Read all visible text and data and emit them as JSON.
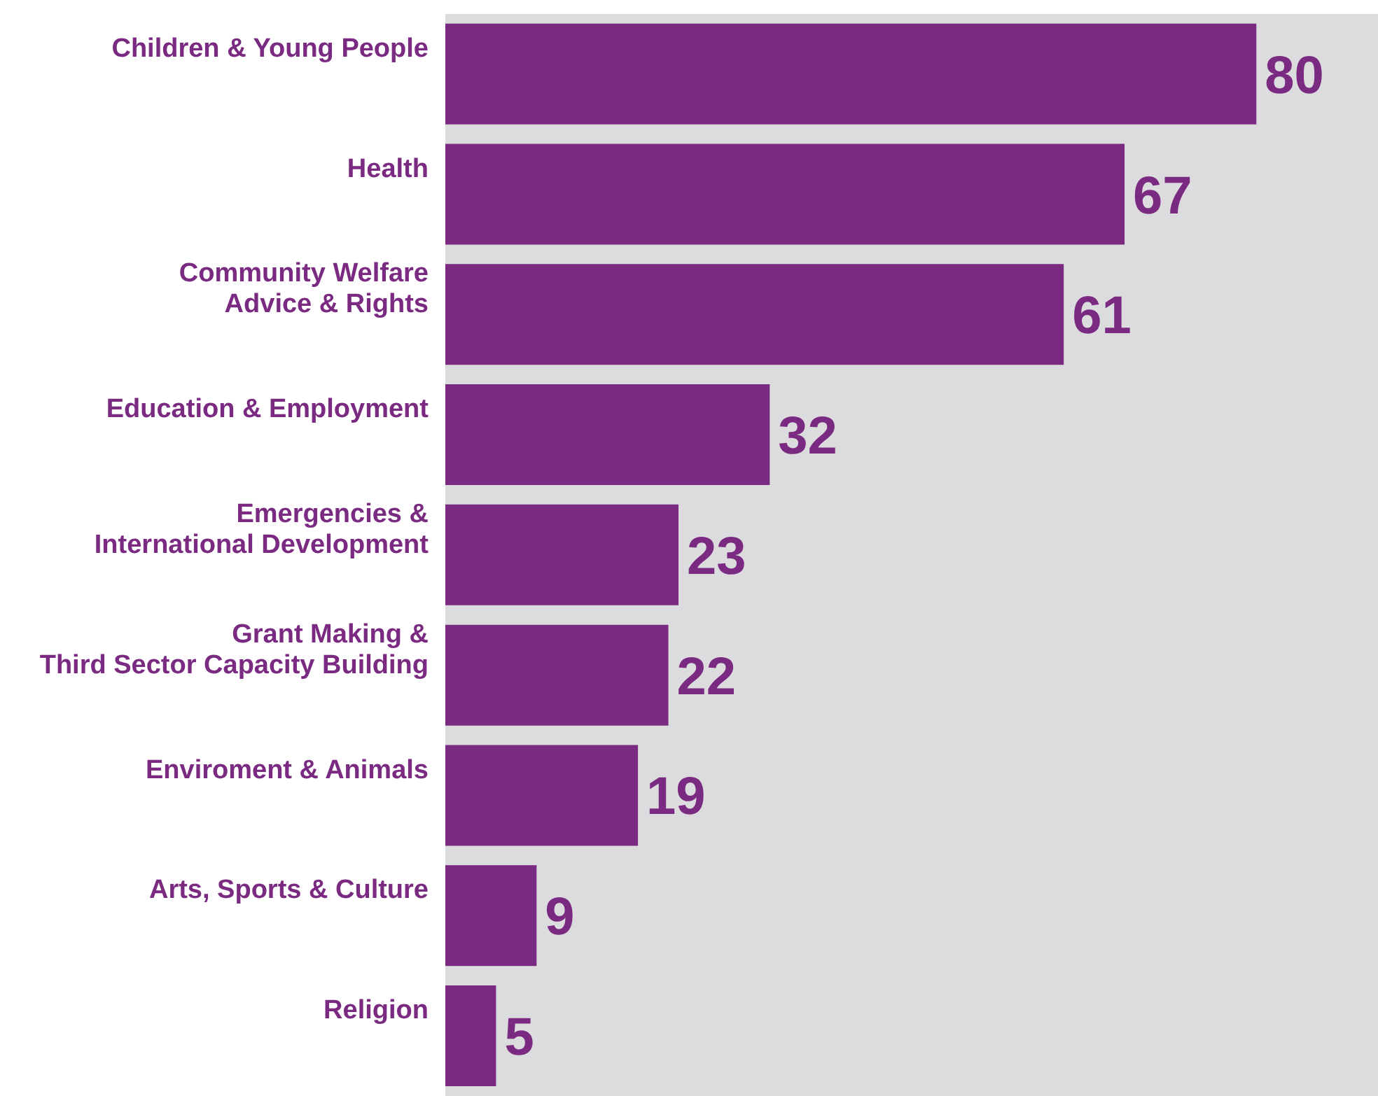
{
  "chart_data": {
    "type": "bar",
    "orientation": "horizontal",
    "categories": [
      "Children & Young People",
      "Health",
      "Community Welfare\nAdvice & Rights",
      "Education & Employment",
      "Emergencies &\nInternational Development",
      "Grant Making &\nThird Sector Capacity Building",
      "Enviroment & Animals",
      "Arts, Sports & Culture",
      "Religion"
    ],
    "values": [
      80,
      67,
      61,
      32,
      23,
      22,
      19,
      9,
      5
    ],
    "color": "#7b2a82",
    "data_labels": true,
    "grid": false
  }
}
